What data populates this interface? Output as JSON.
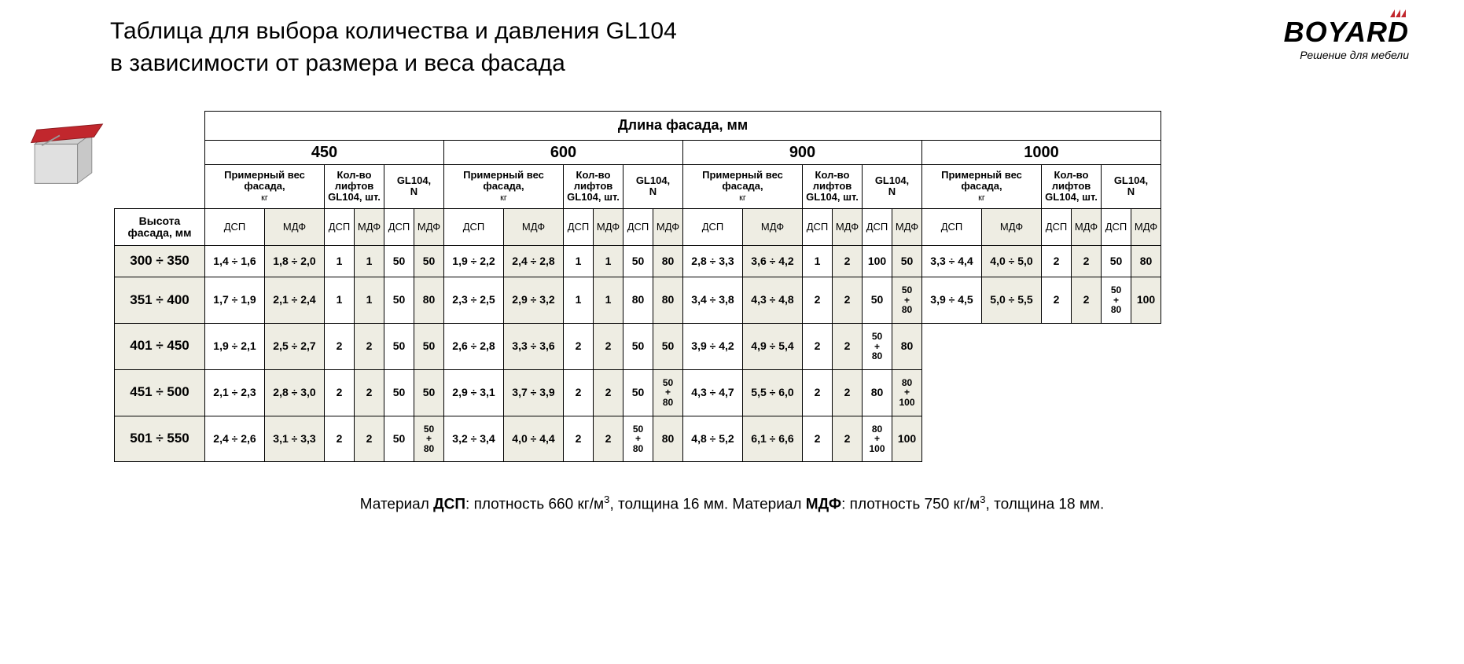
{
  "title_line1": "Таблица для выбора количества и давления GL104",
  "title_line2": "в зависимости от размера и веса фасада",
  "logo": {
    "brand": "BOYARD",
    "tagline": "Решение для мебели",
    "flame_color": "#c1272d"
  },
  "colors": {
    "alt_bg": "#eeede3",
    "border": "#000000",
    "bg": "#ffffff",
    "text": "#000000"
  },
  "cabinet_svg": {
    "body": "#d9d9d9",
    "door": "#c1272d",
    "strut": "#999999"
  },
  "headers": {
    "main": "Длина фасада, мм",
    "lengths": [
      "450",
      "600",
      "900",
      "1000"
    ],
    "weight": "Примерный вес фасада, кг",
    "lifts": "Кол-во лифтов GL104, шт.",
    "force": "GL104, N",
    "rowhead": "Высота фасада, мм",
    "dsp": "ДСП",
    "mdf": "МДФ"
  },
  "rows": [
    {
      "h": "300 ÷ 350",
      "c450": {
        "w_dsp": "1,4 ÷ 1,6",
        "w_mdf": "1,8 ÷ 2,0",
        "n_dsp": "1",
        "n_mdf": "1",
        "f_dsp": "50",
        "f_mdf": "50"
      },
      "c600": {
        "w_dsp": "1,9 ÷ 2,2",
        "w_mdf": "2,4 ÷ 2,8",
        "n_dsp": "1",
        "n_mdf": "1",
        "f_dsp": "50",
        "f_mdf": "80"
      },
      "c900": {
        "w_dsp": "2,8 ÷ 3,3",
        "w_mdf": "3,6 ÷ 4,2",
        "n_dsp": "1",
        "n_mdf": "2",
        "f_dsp": "100",
        "f_mdf": "50"
      },
      "c1000": {
        "w_dsp": "3,3 ÷ 4,4",
        "w_mdf": "4,0 ÷ 5,0",
        "n_dsp": "2",
        "n_mdf": "2",
        "f_dsp": "50",
        "f_mdf": "80"
      }
    },
    {
      "h": "351 ÷ 400",
      "c450": {
        "w_dsp": "1,7 ÷ 1,9",
        "w_mdf": "2,1 ÷ 2,4",
        "n_dsp": "1",
        "n_mdf": "1",
        "f_dsp": "50",
        "f_mdf": "80"
      },
      "c600": {
        "w_dsp": "2,3 ÷ 2,5",
        "w_mdf": "2,9 ÷ 3,2",
        "n_dsp": "1",
        "n_mdf": "1",
        "f_dsp": "80",
        "f_mdf": "80"
      },
      "c900": {
        "w_dsp": "3,4 ÷ 3,8",
        "w_mdf": "4,3 ÷ 4,8",
        "n_dsp": "2",
        "n_mdf": "2",
        "f_dsp": "50",
        "f_mdf": "50 + 80"
      },
      "c1000": {
        "w_dsp": "3,9 ÷ 4,5",
        "w_mdf": "5,0 ÷ 5,5",
        "n_dsp": "2",
        "n_mdf": "2",
        "f_dsp": "50 + 80",
        "f_mdf": "100"
      }
    },
    {
      "h": "401 ÷ 450",
      "c450": {
        "w_dsp": "1,9 ÷ 2,1",
        "w_mdf": "2,5 ÷ 2,7",
        "n_dsp": "2",
        "n_mdf": "2",
        "f_dsp": "50",
        "f_mdf": "50"
      },
      "c600": {
        "w_dsp": "2,6 ÷ 2,8",
        "w_mdf": "3,3 ÷ 3,6",
        "n_dsp": "2",
        "n_mdf": "2",
        "f_dsp": "50",
        "f_mdf": "50"
      },
      "c900": {
        "w_dsp": "3,9 ÷ 4,2",
        "w_mdf": "4,9 ÷ 5,4",
        "n_dsp": "2",
        "n_mdf": "2",
        "f_dsp": "50 + 80",
        "f_mdf": "80"
      }
    },
    {
      "h": "451 ÷ 500",
      "c450": {
        "w_dsp": "2,1 ÷ 2,3",
        "w_mdf": "2,8 ÷ 3,0",
        "n_dsp": "2",
        "n_mdf": "2",
        "f_dsp": "50",
        "f_mdf": "50"
      },
      "c600": {
        "w_dsp": "2,9 ÷ 3,1",
        "w_mdf": "3,7 ÷ 3,9",
        "n_dsp": "2",
        "n_mdf": "2",
        "f_dsp": "50",
        "f_mdf": "50 + 80"
      },
      "c900": {
        "w_dsp": "4,3 ÷ 4,7",
        "w_mdf": "5,5 ÷ 6,0",
        "n_dsp": "2",
        "n_mdf": "2",
        "f_dsp": "80",
        "f_mdf": "80 + 100"
      }
    },
    {
      "h": "501 ÷ 550",
      "c450": {
        "w_dsp": "2,4 ÷ 2,6",
        "w_mdf": "3,1 ÷ 3,3",
        "n_dsp": "2",
        "n_mdf": "2",
        "f_dsp": "50",
        "f_mdf": "50 + 80"
      },
      "c600": {
        "w_dsp": "3,2 ÷ 3,4",
        "w_mdf": "4,0 ÷ 4,4",
        "n_dsp": "2",
        "n_mdf": "2",
        "f_dsp": "50 + 80",
        "f_mdf": "80"
      },
      "c900": {
        "w_dsp": "4,8 ÷ 5,2",
        "w_mdf": "6,1 ÷ 6,6",
        "n_dsp": "2",
        "n_mdf": "2",
        "f_dsp": "80 + 100",
        "f_mdf": "100"
      }
    }
  ],
  "footnote": {
    "prefix1": "Материал ",
    "b1": "ДСП",
    "mid1": ": плотность 660 кг/м",
    "sup": "3",
    "mid1b": ", толщина 16 мм. Материал ",
    "b2": "МДФ",
    "mid2": ": плотность 750 кг/м",
    "mid2b": ", толщина 18 мм."
  },
  "col_widths": {
    "rowhead": 115,
    "weight": 76,
    "count": 38,
    "force": 38
  }
}
